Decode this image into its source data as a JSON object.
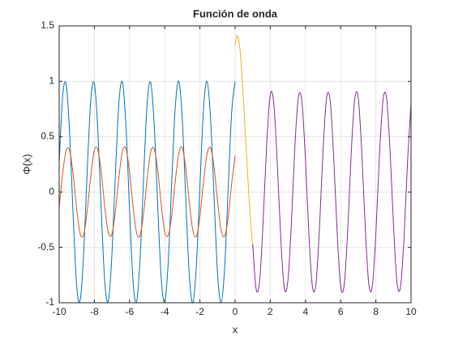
{
  "chart_data": {
    "type": "line",
    "title": "Función de onda",
    "xlabel": "x",
    "ylabel": "Φ(x)",
    "xlim": [
      -10,
      10
    ],
    "ylim": [
      -1,
      1.5
    ],
    "xticks": [
      -10,
      -8,
      -6,
      -4,
      -2,
      0,
      2,
      4,
      6,
      8,
      10
    ],
    "yticks": [
      -1,
      -0.5,
      0,
      0.5,
      1,
      1.5
    ],
    "grid": true,
    "series": [
      {
        "color": "#0072BD",
        "x": [
          -10,
          -9.8,
          -9.6,
          -9.4,
          -9.2,
          -9,
          -8.8,
          -8.6,
          -8.4,
          -8.2,
          -8,
          -7.8,
          -7.6,
          -7.4,
          -7.2,
          -7,
          -6.8,
          -6.6,
          -6.4,
          -6.2,
          -6,
          -5.8,
          -5.6,
          -5.4,
          -5.2,
          -5,
          -4.8,
          -4.6,
          -4.4,
          -4.2,
          -4,
          -3.8,
          -3.6,
          -3.4,
          -3.2,
          -3,
          -2.8,
          -2.6,
          -2.4,
          -2.2,
          -2,
          -1.8,
          -1.6,
          -1.4,
          -1.2,
          -1,
          -0.8,
          -0.6,
          -0.4,
          -0.2,
          0
        ],
        "values": [
          0.27,
          0.87,
          0.97,
          0.51,
          -0.24,
          -0.86,
          -0.97,
          -0.53,
          0.22,
          0.84,
          0.98,
          0.55,
          -0.2,
          -0.83,
          -0.98,
          -0.56,
          0.18,
          0.82,
          0.99,
          0.58,
          -0.16,
          -0.81,
          -0.99,
          -0.6,
          0.14,
          0.8,
          0.99,
          0.61,
          -0.12,
          -0.78,
          -0.99,
          -0.63,
          0.1,
          0.77,
          1.0,
          0.65,
          -0.08,
          -0.76,
          -1.0,
          -0.66,
          0.05,
          0.74,
          1.0,
          0.68,
          -0.03,
          -0.73,
          -1.0,
          -0.7,
          0.01,
          0.71,
          1.0
        ]
      },
      {
        "color": "#D95319",
        "x": [
          -10,
          -9.8,
          -9.6,
          -9.4,
          -9.2,
          -9,
          -8.8,
          -8.6,
          -8.4,
          -8.2,
          -8,
          -7.8,
          -7.6,
          -7.4,
          -7.2,
          -7,
          -6.8,
          -6.6,
          -6.4,
          -6.2,
          -6,
          -5.8,
          -5.6,
          -5.4,
          -5.2,
          -5,
          -4.8,
          -4.6,
          -4.4,
          -4.2,
          -4,
          -3.8,
          -3.6,
          -3.4,
          -3.2,
          -3,
          -2.8,
          -2.6,
          -2.4,
          -2.2,
          -2,
          -1.8,
          -1.6,
          -1.4,
          -1.2,
          -1,
          -0.8,
          -0.6,
          -0.4,
          -0.2,
          0
        ],
        "values": [
          -0.14,
          0.17,
          0.38,
          0.37,
          0.15,
          -0.16,
          -0.38,
          -0.38,
          -0.16,
          0.15,
          0.38,
          0.38,
          0.17,
          -0.15,
          -0.37,
          -0.38,
          -0.17,
          0.14,
          0.37,
          0.39,
          0.18,
          -0.13,
          -0.37,
          -0.39,
          -0.19,
          0.12,
          0.36,
          0.39,
          0.2,
          -0.11,
          -0.36,
          -0.39,
          -0.21,
          0.1,
          0.35,
          0.4,
          0.21,
          -0.1,
          -0.35,
          -0.4,
          -0.22,
          0.09,
          0.34,
          0.4,
          0.23,
          -0.08,
          -0.34,
          -0.4,
          -0.24,
          0.07,
          0.33
        ]
      },
      {
        "color": "#EDB120",
        "x": [
          0,
          0.1,
          0.2,
          0.3,
          0.4,
          0.5,
          0.6,
          0.7,
          0.8,
          0.9,
          1
        ],
        "values": [
          1.33,
          1.41,
          1.38,
          1.25,
          1.03,
          0.76,
          0.47,
          0.19,
          -0.07,
          -0.3,
          -0.5
        ]
      },
      {
        "color": "#7E2F8E",
        "x": [
          1,
          1.2,
          1.4,
          1.6,
          1.8,
          2,
          2.2,
          2.4,
          2.6,
          2.8,
          3,
          3.2,
          3.4,
          3.6,
          3.8,
          4,
          4.2,
          4.4,
          4.6,
          4.8,
          5,
          5.2,
          5.4,
          5.6,
          5.8,
          6,
          6.2,
          6.4,
          6.6,
          6.8,
          7,
          7.2,
          7.4,
          7.6,
          7.8,
          8,
          8.2,
          8.4,
          8.6,
          8.8,
          9,
          9.2,
          9.4,
          9.6,
          9.8,
          10
        ],
        "values": [
          -0.47,
          -0.88,
          -0.79,
          -0.24,
          0.45,
          0.88,
          0.8,
          0.25,
          -0.43,
          -0.87,
          -0.8,
          -0.28,
          0.42,
          0.86,
          0.81,
          0.29,
          -0.4,
          -0.86,
          -0.82,
          -0.31,
          0.38,
          0.85,
          0.83,
          0.33,
          -0.36,
          -0.85,
          -0.84,
          -0.35,
          0.35,
          0.84,
          0.85,
          0.36,
          -0.33,
          -0.83,
          -0.85,
          -0.38,
          0.31,
          0.82,
          0.86,
          0.4,
          -0.29,
          -0.81,
          -0.86,
          -0.42,
          0.27,
          0.8
        ]
      }
    ]
  }
}
